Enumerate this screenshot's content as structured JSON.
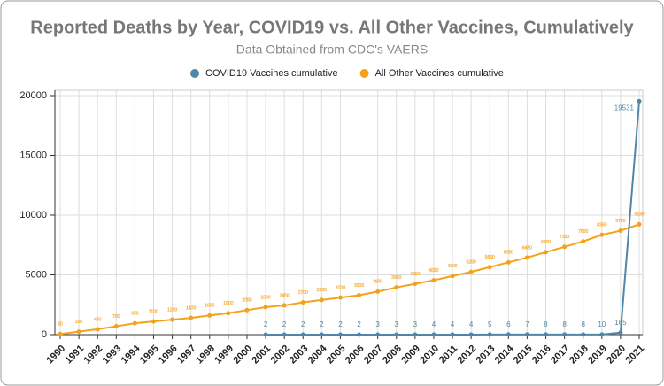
{
  "chart_data": {
    "type": "line",
    "title": "Reported Deaths by Year, COVID19 vs. All Other Vaccines, Cumulatively",
    "subtitle": "Data Obtained from CDC's VAERS",
    "categories": [
      "1990",
      "1991",
      "1992",
      "1993",
      "1994",
      "1995",
      "1996",
      "1997",
      "1998",
      "1999",
      "2000",
      "2001",
      "2002",
      "2003",
      "2004",
      "2005",
      "2006",
      "2007",
      "2008",
      "2009",
      "2010",
      "2011",
      "2012",
      "2013",
      "2014",
      "2015",
      "2016",
      "2017",
      "2018",
      "2019",
      "2020",
      "2021"
    ],
    "series": [
      {
        "name": "COVID19 Vaccines cumulative",
        "color": "#4e87a8",
        "values": [
          null,
          null,
          null,
          null,
          null,
          null,
          null,
          null,
          null,
          null,
          null,
          2,
          2,
          2,
          2,
          2,
          2,
          3,
          3,
          3,
          4,
          4,
          4,
          5,
          6,
          7,
          8,
          8,
          8,
          10,
          165,
          19531
        ]
      },
      {
        "name": "All Other Vaccines cumulative",
        "color": "#f5a21b",
        "values": [
          50,
          250,
          450,
          700,
          950,
          1100,
          1250,
          1400,
          1600,
          1800,
          2050,
          2300,
          2450,
          2700,
          2900,
          3100,
          3300,
          3600,
          3950,
          4250,
          4550,
          4900,
          5250,
          5650,
          6050,
          6450,
          6900,
          7350,
          7800,
          8350,
          8700,
          9230
        ]
      }
    ],
    "ylim": [
      0,
      20000
    ],
    "yticks": [
      0,
      5000,
      10000,
      15000,
      20000
    ],
    "grid": true,
    "legend": "top"
  }
}
